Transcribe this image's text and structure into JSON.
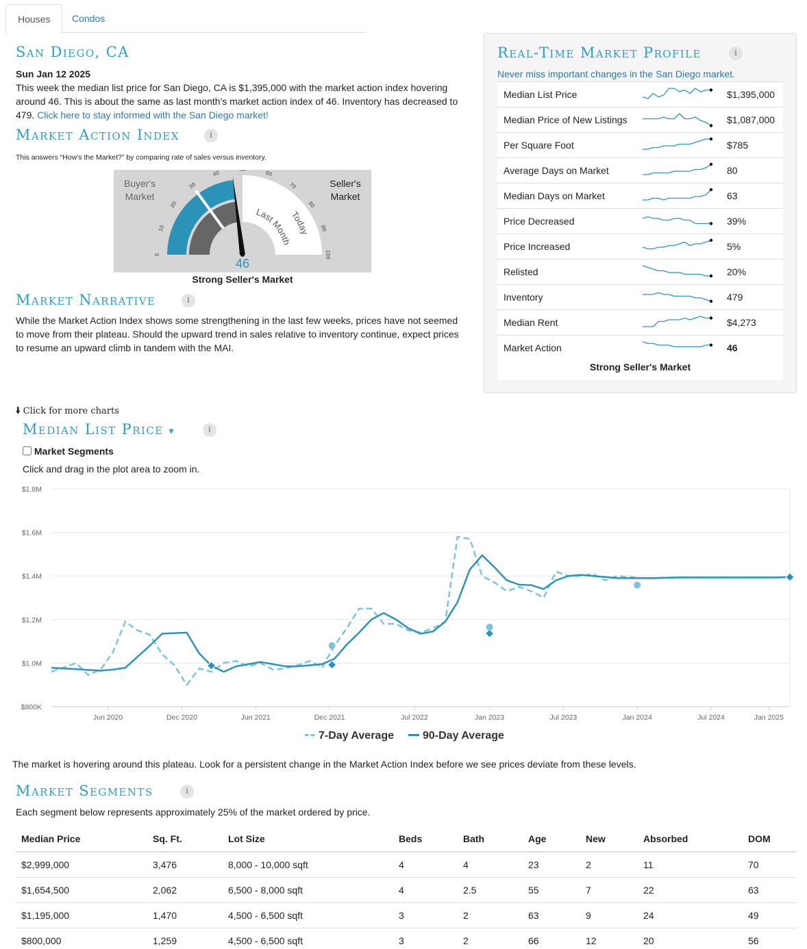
{
  "tabs": [
    {
      "label": "Houses"
    },
    {
      "label": "Condos"
    }
  ],
  "city": {
    "title": "San Diego, CA",
    "date": "Sun Jan 12 2025",
    "summary": "This week the median list price for San Diego, CA is $1,395,000 with the market action index hovering around 46. This is about the same as last month's market action index of 46. Inventory has decreased to 479.",
    "link": "Click here to stay informed with the San Diego market!"
  },
  "mai": {
    "title": "Market Action Index",
    "info": "i",
    "description": "This answers “How's the Market?” by comparing rate of sales versus inventory.",
    "gauge": {
      "buyers": "Buyer's Market",
      "sellers": "Seller's Market",
      "ticks": [
        "0",
        "10",
        "20",
        "30",
        "40",
        "50",
        "60",
        "70",
        "80",
        "90",
        "100"
      ],
      "last_month_label": "Last Month",
      "today_label": "Today",
      "value": "46",
      "value_num": 46,
      "last_month_num": 46,
      "status": "Strong Seller's Market"
    }
  },
  "narrative": {
    "title": "Market Narrative",
    "info": "i",
    "text": "While the Market Action Index shows some strengthening in the last few weeks, prices have not seemed to move from their plateau. Should the upward trend in sales relative to inventory continue, expect prices to resume an upward climb in tandem with the MAI."
  },
  "profile": {
    "title": "Real-Time Market Profile",
    "info": "i",
    "subtitle": "Never miss important changes in the San Diego market.",
    "rows": [
      {
        "label": "Median List Price",
        "value": "$1,395,000",
        "spark": [
          3,
          2,
          5,
          3,
          4,
          8,
          8,
          6,
          7,
          5,
          8,
          6,
          7,
          7
        ]
      },
      {
        "label": "Median Price of New Listings",
        "value": "$1,087,000",
        "spark": [
          5,
          5,
          5,
          5,
          6,
          5,
          5,
          8,
          5,
          5,
          6,
          4,
          3,
          1
        ]
      },
      {
        "label": "Per Square Foot",
        "value": "$785",
        "spark": [
          2,
          2,
          3,
          3,
          4,
          4,
          4,
          5,
          5,
          5,
          6,
          7,
          8,
          8
        ]
      },
      {
        "label": "Average Days on Market",
        "value": "80",
        "spark": [
          2,
          2,
          3,
          3,
          3,
          3,
          4,
          4,
          4,
          4,
          5,
          5,
          6,
          8
        ]
      },
      {
        "label": "Median Days on Market",
        "value": "63",
        "spark": [
          2,
          2,
          3,
          3,
          2,
          3,
          3,
          3,
          3,
          3,
          4,
          4,
          5,
          8
        ]
      },
      {
        "label": "Price Decreased",
        "value": "39%",
        "spark": [
          6,
          7,
          6,
          6,
          5,
          5,
          6,
          6,
          5,
          5,
          3,
          3,
          3,
          3
        ]
      },
      {
        "label": "Price Increased",
        "value": "5%",
        "spark": [
          4,
          3,
          3,
          4,
          4,
          5,
          5,
          6,
          7,
          5,
          6,
          6,
          7,
          8
        ]
      },
      {
        "label": "Relisted",
        "value": "20%",
        "spark": [
          8,
          7,
          6,
          5,
          5,
          4,
          4,
          4,
          3,
          3,
          3,
          3,
          2,
          2
        ]
      },
      {
        "label": "Inventory",
        "value": "479",
        "spark": [
          6,
          6,
          6,
          7,
          6,
          6,
          5,
          5,
          5,
          5,
          4,
          4,
          3,
          2
        ]
      },
      {
        "label": "Median Rent",
        "value": "$4,273",
        "spark": [
          2,
          2,
          2,
          5,
          5,
          6,
          6,
          6,
          7,
          6,
          7,
          8,
          7,
          7
        ]
      },
      {
        "label": "Market Action",
        "value": "46",
        "spark": [
          8,
          7,
          7,
          6,
          6,
          6,
          5,
          5,
          5,
          5,
          5,
          5,
          6,
          6
        ]
      }
    ],
    "status": "Strong Seller's Market"
  },
  "more_charts": {
    "arrow": "🡫",
    "label": "Click for more charts"
  },
  "mlp": {
    "title": "Median List Price",
    "caret": "▾",
    "info": "i",
    "checkbox_label": "Market Segments",
    "hint": "Click and drag in the plot area to zoom in.",
    "legend": {
      "seven": "7-Day Average",
      "ninety": "90-Day Average"
    },
    "commentary": "The market is hovering around this plateau. Look for a persistent change in the Market Action Index before we see prices deviate from these levels."
  },
  "chart_data": {
    "type": "line",
    "y_ticks": [
      "$800K",
      "$1.0M",
      "$1.2M",
      "$1.4M",
      "$1.6M",
      "$1.8M"
    ],
    "x_ticks": [
      "Jun 2020",
      "Dec 2020",
      "Jun 2021",
      "Dec 2021",
      "Jul 2022",
      "Jan 2023",
      "Jul 2023",
      "Jan 2024",
      "Jul 2024",
      "Jan 2025"
    ],
    "ylim": [
      800,
      1800
    ],
    "grid": true,
    "legend_position": "bottom",
    "series": [
      {
        "name": "90-Day Average",
        "color": "#2c93b8",
        "x": [
          0,
          2,
          4,
          5,
          6,
          8,
          9,
          11,
          12,
          13,
          14,
          15,
          16,
          17,
          18,
          19,
          20,
          21,
          22,
          23,
          24,
          25,
          26,
          27,
          28,
          29,
          30,
          31,
          32,
          33,
          34,
          35,
          36,
          37,
          38,
          39,
          40,
          41,
          42,
          43,
          44,
          45,
          46,
          47,
          48,
          49,
          50,
          51,
          52,
          53,
          54,
          55,
          56,
          57,
          58,
          59,
          60
        ],
        "y": [
          978,
          972,
          965,
          970,
          978,
          1080,
          1135,
          1140,
          1045,
          988,
          960,
          985,
          995,
          1005,
          995,
          985,
          985,
          990,
          995,
          1020,
          1085,
          1140,
          1200,
          1230,
          1200,
          1160,
          1135,
          1145,
          1190,
          1280,
          1430,
          1495,
          1440,
          1380,
          1360,
          1358,
          1340,
          1380,
          1400,
          1405,
          1400,
          1395,
          1390,
          1390,
          1390,
          1390,
          1392,
          1393,
          1393,
          1393,
          1393,
          1393,
          1393,
          1393,
          1393,
          1393,
          1395
        ]
      },
      {
        "name": "7-Day Average",
        "color": "#7ec4d8",
        "x": [
          0,
          1,
          2,
          3,
          4,
          5,
          6,
          7,
          8,
          9,
          10,
          11,
          12,
          13,
          14,
          15,
          16,
          17,
          18,
          19,
          20,
          21,
          22,
          23,
          24,
          25,
          26,
          27,
          28,
          29,
          30,
          31,
          32,
          33,
          34,
          35,
          36,
          37,
          38,
          39,
          40,
          41,
          42,
          43,
          44,
          45,
          46,
          47,
          48,
          49,
          50,
          51,
          52,
          53,
          54,
          55,
          56,
          57,
          58,
          59,
          60
        ],
        "y": [
          960,
          980,
          1000,
          945,
          970,
          1050,
          1190,
          1150,
          1130,
          1040,
          990,
          900,
          975,
          960,
          1000,
          1010,
          985,
          1000,
          970,
          975,
          990,
          1010,
          980,
          1080,
          1160,
          1250,
          1250,
          1180,
          1180,
          1150,
          1140,
          1160,
          1190,
          1580,
          1570,
          1400,
          1370,
          1330,
          1350,
          1330,
          1300,
          1420,
          1400,
          1400,
          1410,
          1380,
          1400,
          1395,
          1390,
          1390,
          1392,
          1393,
          1393,
          1393,
          1393,
          1393,
          1393,
          1393,
          1393,
          1393,
          1395
        ]
      }
    ]
  },
  "segments": {
    "title": "Market Segments",
    "info": "i",
    "subtitle": "Each segment below represents approximately 25% of the market ordered by price.",
    "headers": [
      "Median Price",
      "Sq. Ft.",
      "Lot Size",
      "Beds",
      "Bath",
      "Age",
      "New",
      "Absorbed",
      "DOM"
    ],
    "rows": [
      [
        "$2,999,000",
        "3,476",
        "8,000 - 10,000 sqft",
        "4",
        "4",
        "23",
        "2",
        "11",
        "70"
      ],
      [
        "$1,654,500",
        "2,062",
        "6,500 - 8,000 sqft",
        "4",
        "2.5",
        "55",
        "7",
        "22",
        "63"
      ],
      [
        "$1,195,000",
        "1,470",
        "4,500 - 6,500 sqft",
        "3",
        "2",
        "63",
        "9",
        "24",
        "49"
      ],
      [
        "$800,000",
        "1,259",
        "4,500 - 6,500 sqft",
        "3",
        "2",
        "66",
        "12",
        "20",
        "56"
      ]
    ]
  }
}
